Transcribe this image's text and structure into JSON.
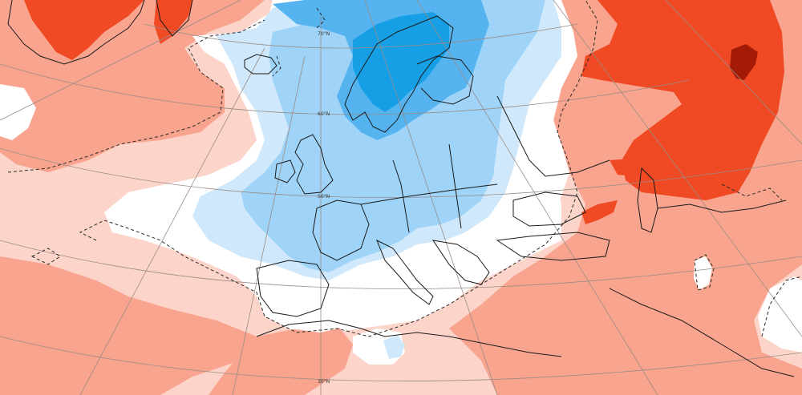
{
  "map": {
    "palette": {
      "deep_red": "#a31a05",
      "red": "#ef4a24",
      "salmon": "#f9a48e",
      "light_pink": "#fdd4c9",
      "neutral": "#ffffff",
      "light_blue": "#cfe8fb",
      "mid_blue": "#9fd4f8",
      "blue": "#55b4ef",
      "deep_blue": "#169fe4",
      "coastline": "#1a1a1a",
      "graticule": "#9a8c86",
      "zero_contour": "#2a2a2a"
    },
    "latitude_labels": [
      "70°N",
      "60°N",
      "50°N",
      "30°N"
    ]
  }
}
